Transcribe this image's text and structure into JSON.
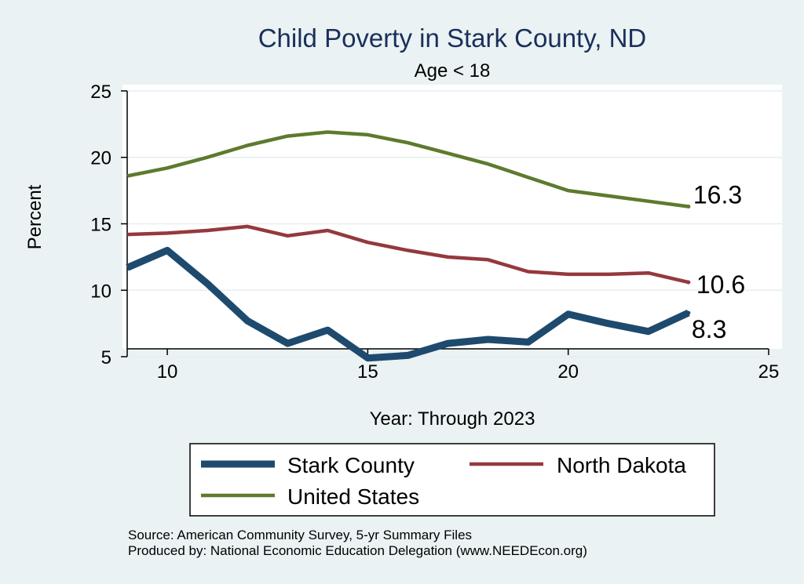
{
  "chart_data": {
    "type": "line",
    "title": "Child Poverty in Stark County, ND",
    "subtitle": "Age < 18",
    "xlabel": "Year: Through 2023",
    "ylabel": "Percent",
    "xlim": [
      9,
      25
    ],
    "ylim": [
      4,
      26
    ],
    "xticks": [
      10,
      15,
      20,
      25
    ],
    "yticks": [
      5,
      10,
      15,
      20,
      25
    ],
    "grid": true,
    "legend_position": "bottom",
    "colors": {
      "title": "#1a2f5a",
      "plot_bg": "#ffffff",
      "grid": "#e6eff0",
      "outer_bg": "#eaf2f3"
    },
    "series": [
      {
        "name": "Stark County",
        "color": "#1e4a6e",
        "width": "thick",
        "x": [
          9,
          10,
          11,
          12,
          13,
          14,
          15,
          16,
          17,
          18,
          19,
          20,
          21,
          22,
          23
        ],
        "values": [
          11.7,
          13.0,
          10.5,
          7.7,
          6.0,
          7.0,
          4.9,
          5.1,
          6.0,
          6.3,
          6.1,
          8.2,
          7.5,
          6.9,
          8.3
        ],
        "end_label": "8.3"
      },
      {
        "name": "North Dakota",
        "color": "#94393e",
        "width": "normal",
        "x": [
          9,
          10,
          11,
          12,
          13,
          14,
          15,
          16,
          17,
          18,
          19,
          20,
          21,
          22,
          23
        ],
        "values": [
          14.2,
          14.3,
          14.5,
          14.8,
          14.1,
          14.5,
          13.6,
          13.0,
          12.5,
          12.3,
          11.4,
          11.2,
          11.2,
          11.3,
          10.6
        ],
        "end_label": "10.6"
      },
      {
        "name": "United States",
        "color": "#5e7a2e",
        "width": "normal",
        "x": [
          9,
          10,
          11,
          12,
          13,
          14,
          15,
          16,
          17,
          18,
          19,
          20,
          21,
          22,
          23
        ],
        "values": [
          18.6,
          19.2,
          20.0,
          20.9,
          21.6,
          21.9,
          21.7,
          21.1,
          20.3,
          19.5,
          18.5,
          17.5,
          17.1,
          16.7,
          16.3
        ],
        "end_label": "16.3"
      }
    ]
  },
  "source_note": "Source: American Community Survey, 5-yr Summary Files",
  "producer_note": "Produced by: National Economic Education Delegation (www.NEEDEcon.org)"
}
